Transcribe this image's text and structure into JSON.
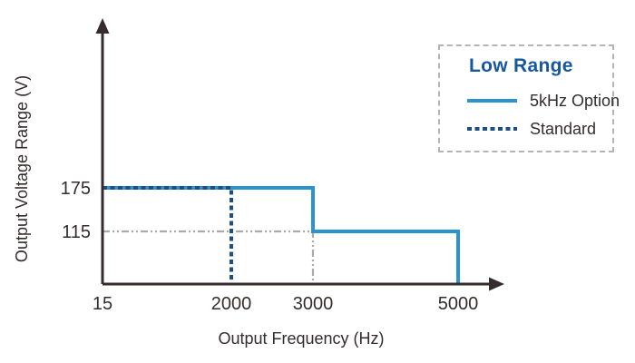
{
  "chart_data": {
    "type": "line",
    "title": "",
    "xlabel": "Output Frequency (Hz)",
    "ylabel": "Output Voltage Range (V)",
    "x_ticks": [
      15,
      2000,
      3000,
      5000
    ],
    "y_ticks": [
      175,
      115
    ],
    "xlim": [
      15,
      5000
    ],
    "ylim": [
      0,
      220
    ],
    "grid": false,
    "series": [
      {
        "name": "5kHz Option",
        "style": "solid",
        "color": "#2B93CE",
        "points": [
          [
            15,
            175
          ],
          [
            3000,
            175
          ],
          [
            3000,
            115
          ],
          [
            5000,
            115
          ],
          [
            5000,
            0
          ]
        ]
      },
      {
        "name": "Standard",
        "style": "dashed",
        "color": "#1C4F85",
        "points": [
          [
            15,
            175
          ],
          [
            2000,
            175
          ],
          [
            2000,
            0
          ]
        ]
      }
    ],
    "guides": [
      {
        "name": "115V level guide",
        "style": "dash-dot",
        "color": "#ABA9AA",
        "points": [
          [
            15,
            115
          ],
          [
            3000,
            115
          ],
          [
            3000,
            0
          ]
        ]
      }
    ],
    "legend": {
      "title": "Low Range",
      "position": "top-right",
      "entries": [
        {
          "label": "5kHz Option",
          "style": "solid",
          "color": "#2B93CE"
        },
        {
          "label": "Standard",
          "style": "dashed",
          "color": "#1C4F85"
        }
      ]
    },
    "colors": {
      "axis": "#342C2D",
      "tick_text": "#342C2D",
      "legend_title": "#15589E",
      "legend_border": "#B5B3B4",
      "guide": "#ABA9AA"
    }
  }
}
